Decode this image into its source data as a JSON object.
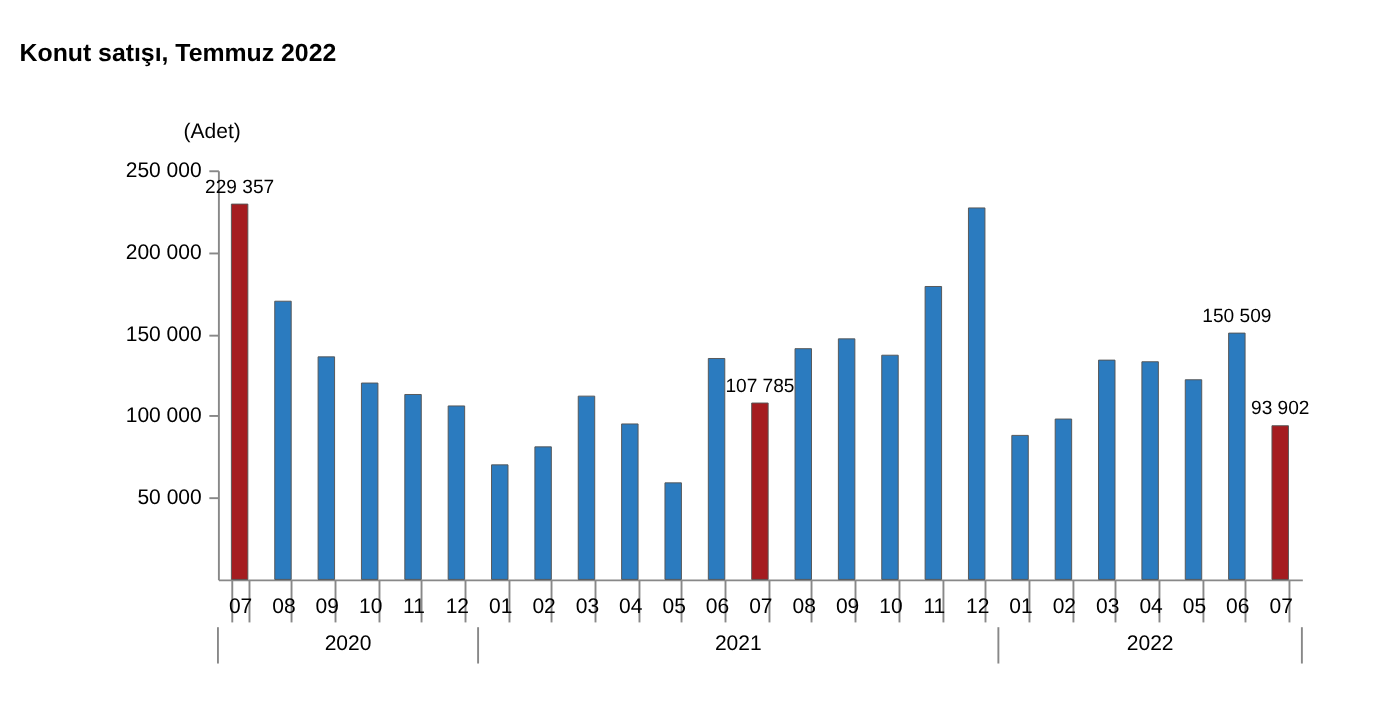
{
  "chart_data": {
    "type": "bar",
    "title": "Konut satışı, Temmuz 2022",
    "ylabel": "(Adet)",
    "categories": [
      "07",
      "08",
      "09",
      "10",
      "11",
      "12",
      "01",
      "02",
      "03",
      "04",
      "05",
      "06",
      "07",
      "08",
      "09",
      "10",
      "11",
      "12",
      "01",
      "02",
      "03",
      "04",
      "05",
      "06",
      "07"
    ],
    "annotations": [
      "2020",
      "2021",
      "2022"
    ],
    "values": [
      229357,
      170000,
      136000,
      120000,
      113000,
      106000,
      70000,
      81000,
      112000,
      95000,
      59000,
      135000,
      107785,
      141000,
      147000,
      137000,
      179000,
      227000,
      88000,
      98000,
      134000,
      133000,
      122000,
      150509,
      93902
    ],
    "value_labels": [
      "229 357",
      null,
      null,
      null,
      null,
      null,
      null,
      null,
      null,
      null,
      null,
      null,
      "107 785",
      null,
      null,
      null,
      null,
      null,
      null,
      null,
      null,
      null,
      null,
      "150 509",
      "93 902"
    ],
    "colors": [
      "#a51c20",
      "#2b7bbf",
      "#2b7bbf",
      "#2b7bbf",
      "#2b7bbf",
      "#2b7bbf",
      "#2b7bbf",
      "#2b7bbf",
      "#2b7bbf",
      "#2b7bbf",
      "#2b7bbf",
      "#2b7bbf",
      "#a51c20",
      "#2b7bbf",
      "#2b7bbf",
      "#2b7bbf",
      "#2b7bbf",
      "#2b7bbf",
      "#2b7bbf",
      "#2b7bbf",
      "#2b7bbf",
      "#2b7bbf",
      "#2b7bbf",
      "#2b7bbf",
      "#a51c20"
    ],
    "ylim": [
      0,
      250000
    ],
    "yticks": [
      {
        "value": 50000,
        "label": "50 000"
      },
      {
        "value": 100000,
        "label": "100 000"
      },
      {
        "value": 150000,
        "label": "150 000"
      },
      {
        "value": 200000,
        "label": "200 000"
      },
      {
        "value": 250000,
        "label": "250 000"
      }
    ],
    "grid": false
  }
}
